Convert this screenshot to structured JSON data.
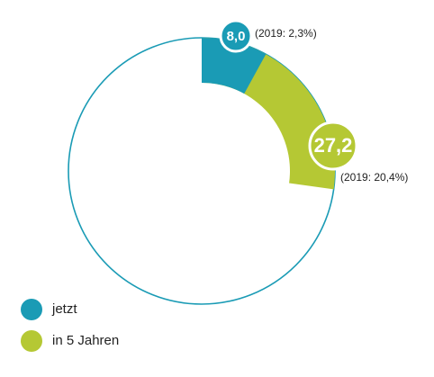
{
  "chart_data": {
    "type": "donut",
    "categories": [
      "jetzt",
      "in 5 Jahren"
    ],
    "values": [
      8.0,
      27.2
    ],
    "value_labels": [
      "8,0",
      "27,2"
    ],
    "annotations": [
      "(2019: 2,3%)",
      "(2019: 20,4%)"
    ],
    "colors": [
      "#1a9bb5",
      "#b5c834"
    ],
    "ring_color": "#1a9bb5"
  }
}
